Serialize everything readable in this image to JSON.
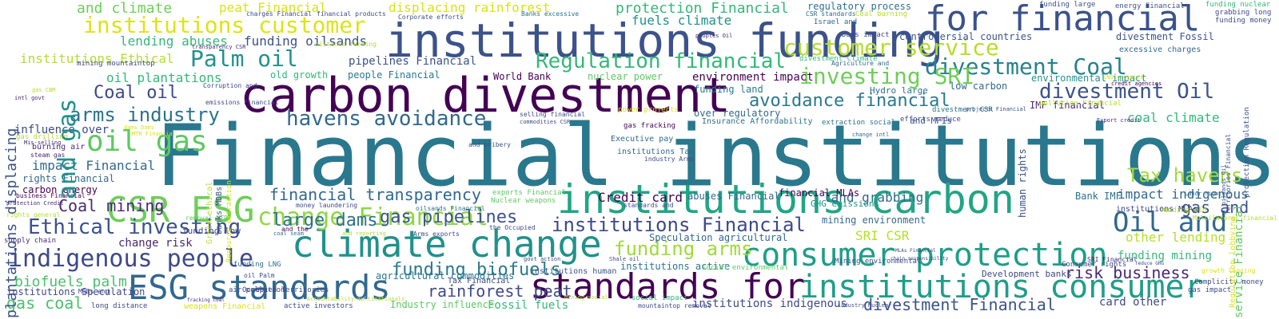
{
  "palette": {
    "background": "#ffffff",
    "dark_purple": "#440154",
    "indigo": "#3b528b",
    "teal_blue": "#31688e",
    "teal": "#21918c",
    "green": "#35b779",
    "lime": "#90d743",
    "yellow": "#d2e21b"
  },
  "words": [
    "Financial institutions",
    "carbon divestment",
    "institutions funding",
    "for financial",
    "institutions carbon",
    "climate change",
    "consumer protection",
    "standards for",
    "ESG standards",
    "institutions consumer",
    "CSR ESG",
    "change Financial",
    "Ethical investing",
    "indigenous people",
    "oil gas",
    "and gas",
    "divestment Coal",
    "divestment Oil",
    "customer service",
    "investing SRI",
    "institutions customer",
    "Regulation financial",
    "Palm oil",
    "Oil and",
    "Tax havens",
    "havens avoidance",
    "avoidance financial",
    "arms industry",
    "institutions Financial",
    "funding arms",
    "financial transparency",
    "funding biofuels",
    "divestment Financial",
    "Coal oil",
    "Coal mining",
    "gas pipelines",
    "large dams",
    "rainforest peat",
    "risk business",
    "plantations displacing",
    "biofuels palm",
    "gas coal",
    "gas and",
    "and climate",
    "peat Financial",
    "displacing rainforest",
    "protection Financial",
    "fuels climate",
    "regulatory process",
    "lending abuses",
    "funding oilsands",
    "pipelines Financial",
    "institutions Ethical",
    "oil plantations",
    "people Financial",
    "environment impact",
    "World Bank",
    "nuclear power",
    "old growth",
    "impact Financial",
    "carbon energy",
    "influence over",
    "burning air",
    "rights Financial",
    "Credit card",
    "land grabbing",
    "coal climate",
    "impact indigenous",
    "other lending",
    "funding mining",
    "SRI CSR",
    "Speculation agricultural",
    "change risk",
    "funding low",
    "agricultural commodities",
    "Fossil fuels",
    "Industry influence",
    "institutions active",
    "institutions human",
    "institutions indigenous",
    "Development banks",
    "card other",
    "environmental impact",
    "IMF financial",
    "Bank IMF",
    "over regulatory",
    "funding land",
    "financial MLAs",
    "abuses Financial",
    "GHG emissions",
    "mining environment",
    "human rights",
    "divestment Fossil",
    "controversial countries",
    "low carbon",
    "Dams impact",
    "excessive charges",
    "service Financial",
    "Regulation lobbying",
    "protection Regulation",
    "funding nuclear",
    "grabbing long",
    "funding money",
    "energy Financial",
    "funding large",
    "Coal burning",
    "CSR standards",
    "Israel and",
    "Banks excessive",
    "Corporate efforts",
    "financial products",
    "charges Financial",
    "mining mountaintop",
    "transparency CSR",
    "distance forming",
    "peoples Oil",
    "Agriculture and",
    "divestment Climate",
    "Hydro large",
    "Insurance Affordability",
    "extraction social",
    "efforts reduce",
    "and MFIs",
    "pollution Financial",
    "Export credit",
    "LNG projects",
    "credit agencies",
    "divestment CSR",
    "projects Financial",
    "selling financial",
    "commodities CSR",
    "power projects",
    "gas fracking",
    "Executive pay",
    "institutions Tax",
    "industry Arms",
    "and bribery",
    "change intl",
    "exports Financial",
    "Nuclear weapons",
    "standards and",
    "money laundering",
    "oilsands Financial",
    "the Occupied",
    "Arms exports",
    "and reporting",
    "and the",
    "removal MTR",
    "coal seam",
    "Resource extraction",
    "Green ethical",
    "banks MDBs",
    "dams Dams",
    "MTR Financial",
    "emissions Financial",
    "Corruption and",
    "gas CBM",
    "intl govt",
    "gas drilling",
    "Mis-selling",
    "steam gas",
    "business Financial",
    "protection Credit",
    "rights general",
    "supply chain",
    "institutions Speculation",
    "MDBs and",
    "long distance",
    "weapons Financial",
    "active investors",
    "mountaintop removal",
    "industry Nuclear",
    "gas impact",
    "Complicity money",
    "growth logging",
    "Consumer rights",
    "SRI Financial",
    "reduce GHG",
    "chain responsibility",
    "Mining environmental",
    "Shale oil",
    "govt action",
    "social environmental",
    "Accountability multinationals",
    "social impact",
    "Mining social",
    "Tax Financial",
    "air pollution",
    "Occupied Territories",
    "oil Palm",
    "funding LNG",
    "fracking coal",
    "MLAs Financial",
    "Multilateral financial",
    "funding old",
    "Territories Financial",
    "Labor rights",
    "oilsands Oil",
    "institutions MLAs",
    "institutions controversial",
    "and and"
  ]
}
